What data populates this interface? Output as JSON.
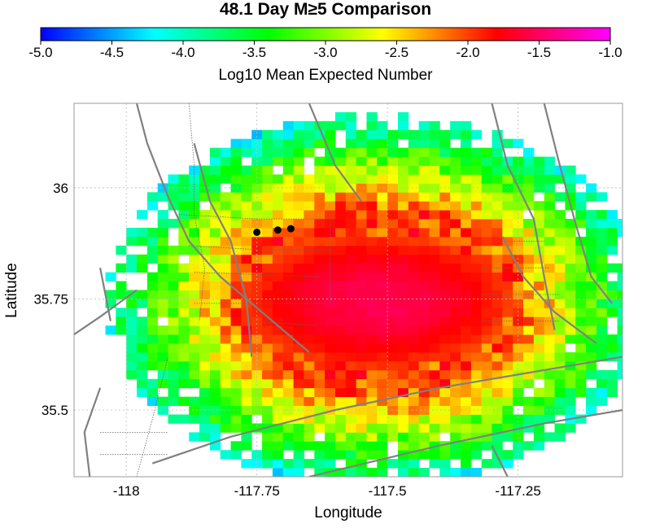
{
  "chart_data": {
    "type": "heatmap",
    "title": "48.1 Day M≥5 Comparison",
    "colorbar": {
      "label": "Log10 Mean Expected Number",
      "range": [
        -5.0,
        -1.0
      ],
      "ticks": [
        "-5.0",
        "-4.5",
        "-4.0",
        "-3.5",
        "-3.0",
        "-2.5",
        "-2.0",
        "-1.5",
        "-1.0"
      ],
      "colors": [
        "#0000ff",
        "#00ffff",
        "#00ff00",
        "#ffff00",
        "#ff0000",
        "#ff00ff"
      ]
    },
    "xlabel": "Longitude",
    "ylabel": "Latitude",
    "xlim": [
      -118.1,
      -117.05
    ],
    "ylim": [
      35.35,
      36.19
    ],
    "x_ticks": [
      {
        "value": -118.0,
        "label": "-118"
      },
      {
        "value": -117.75,
        "label": "-117.75"
      },
      {
        "value": -117.5,
        "label": "-117.5"
      },
      {
        "value": -117.25,
        "label": "-117.25"
      }
    ],
    "y_ticks": [
      {
        "value": 35.5,
        "label": "35.5"
      },
      {
        "value": 35.75,
        "label": "35.75"
      },
      {
        "value": 36.0,
        "label": "36"
      }
    ],
    "grid": true,
    "cell_size_deg": 0.02,
    "field": {
      "peak_value": -1.55,
      "peak_lon": -117.52,
      "peak_lat": 35.745,
      "core_radius_lon": 0.26,
      "core_radius_lat": 0.15,
      "outer_radius_lon": 0.52,
      "outer_radius_lat": 0.42,
      "edge_value": -3.9
    },
    "events": [
      {
        "lon": -117.75,
        "lat": 35.9
      },
      {
        "lon": -117.71,
        "lat": 35.905
      },
      {
        "lon": -117.685,
        "lat": 35.908
      }
    ],
    "faults": [
      [
        [
          -117.98,
          36.19
        ],
        [
          -117.96,
          36.1
        ],
        [
          -117.92,
          35.98
        ],
        [
          -117.88,
          35.88
        ],
        [
          -117.82,
          35.8
        ],
        [
          -117.74,
          35.72
        ],
        [
          -117.65,
          35.63
        ]
      ],
      [
        [
          -117.65,
          36.19
        ],
        [
          -117.6,
          36.05
        ],
        [
          -117.55,
          35.97
        ]
      ],
      [
        [
          -117.87,
          36.1
        ],
        [
          -117.84,
          35.97
        ],
        [
          -117.8,
          35.88
        ],
        [
          -117.77,
          35.75
        ],
        [
          -117.76,
          35.62
        ]
      ],
      [
        [
          -117.3,
          36.19
        ],
        [
          -117.27,
          36.05
        ],
        [
          -117.22,
          35.93
        ],
        [
          -117.2,
          35.8
        ],
        [
          -117.18,
          35.68
        ]
      ],
      [
        [
          -117.2,
          36.19
        ],
        [
          -117.17,
          36.05
        ],
        [
          -117.14,
          35.92
        ],
        [
          -117.11,
          35.8
        ],
        [
          -117.07,
          35.74
        ]
      ],
      [
        [
          -117.28,
          35.89
        ],
        [
          -117.24,
          35.8
        ],
        [
          -117.18,
          35.72
        ],
        [
          -117.1,
          35.65
        ]
      ],
      [
        [
          -118.1,
          35.67
        ],
        [
          -118.05,
          35.71
        ],
        [
          -117.98,
          35.77
        ]
      ],
      [
        [
          -118.05,
          35.82
        ],
        [
          -118.03,
          35.7
        ]
      ],
      [
        [
          -117.95,
          35.38
        ],
        [
          -117.8,
          35.44
        ],
        [
          -117.6,
          35.5
        ],
        [
          -117.4,
          35.55
        ],
        [
          -117.2,
          35.59
        ],
        [
          -117.05,
          35.62
        ]
      ],
      [
        [
          -117.65,
          35.35
        ],
        [
          -117.4,
          35.42
        ],
        [
          -117.2,
          35.47
        ],
        [
          -117.05,
          35.5
        ]
      ],
      [
        [
          -118.07,
          35.35
        ],
        [
          -118.08,
          35.45
        ],
        [
          -118.05,
          35.55
        ]
      ],
      [
        [
          -117.27,
          35.35
        ],
        [
          -117.3,
          35.42
        ]
      ]
    ],
    "boundaries": [
      [
        [
          -117.88,
          36.19
        ],
        [
          -117.87,
          36.05
        ],
        [
          -117.87,
          35.94
        ],
        [
          -117.85,
          35.82
        ],
        [
          -117.86,
          35.7
        ]
      ],
      [
        [
          -117.9,
          35.94
        ],
        [
          -117.75,
          35.93
        ],
        [
          -117.6,
          35.93
        ]
      ],
      [
        [
          -117.88,
          35.87
        ],
        [
          -117.74,
          35.86
        ],
        [
          -117.61,
          35.86
        ]
      ],
      [
        [
          -117.87,
          35.81
        ],
        [
          -117.63,
          35.8
        ]
      ],
      [
        [
          -117.87,
          35.74
        ],
        [
          -117.62,
          35.74
        ]
      ],
      [
        [
          -117.77,
          35.7
        ],
        [
          -117.63,
          35.69
        ]
      ],
      [
        [
          -117.61,
          35.93
        ],
        [
          -117.61,
          35.74
        ]
      ],
      [
        [
          -117.3,
          35.88
        ],
        [
          -117.2,
          35.88
        ]
      ],
      [
        [
          -117.32,
          35.82
        ],
        [
          -117.19,
          35.82
        ]
      ],
      [
        [
          -117.32,
          35.76
        ],
        [
          -117.17,
          35.76
        ]
      ],
      [
        [
          -117.32,
          35.7
        ],
        [
          -117.17,
          35.7
        ]
      ],
      [
        [
          -117.98,
          35.35
        ],
        [
          -117.95,
          35.48
        ],
        [
          -117.92,
          35.62
        ]
      ],
      [
        [
          -118.05,
          35.45
        ],
        [
          -117.92,
          35.45
        ]
      ],
      [
        [
          -118.05,
          35.4
        ],
        [
          -117.92,
          35.4
        ]
      ]
    ]
  }
}
